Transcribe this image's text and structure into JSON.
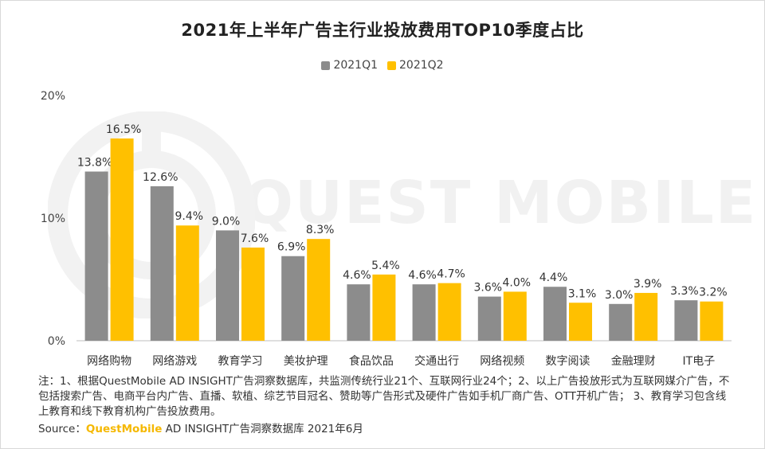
{
  "chart_data": {
    "type": "bar",
    "title": "2021年上半年广告主行业投放费用TOP10季度占比",
    "categories": [
      "网络购物",
      "网络游戏",
      "教育学习",
      "美妆护理",
      "食品饮品",
      "交通出行",
      "网络视频",
      "数字阅读",
      "金融理财",
      "IT电子"
    ],
    "series": [
      {
        "name": "2021Q1",
        "values": [
          13.8,
          12.6,
          9.0,
          6.9,
          4.6,
          4.6,
          3.6,
          4.4,
          3.0,
          3.3
        ],
        "labels": [
          "13.8%",
          "12.6%",
          "9.0%",
          "6.9%",
          "4.6%",
          "4.6%",
          "3.6%",
          "4.4%",
          "3.0%",
          "3.3%"
        ],
        "color": "#8c8c8c"
      },
      {
        "name": "2021Q2",
        "values": [
          16.5,
          9.4,
          7.6,
          8.3,
          5.4,
          4.7,
          4.0,
          3.1,
          3.9,
          3.2
        ],
        "labels": [
          "16.5%",
          "9.4%",
          "7.6%",
          "8.3%",
          "5.4%",
          "4.7%",
          "4.0%",
          "3.1%",
          "3.9%",
          "3.2%"
        ],
        "color": "#ffc000"
      }
    ],
    "yticks": [
      "0%",
      "10%",
      "20%"
    ],
    "ytick_values": [
      0,
      10,
      20
    ],
    "ylim": [
      0,
      20
    ],
    "grid": false,
    "legend": "top-center"
  },
  "watermark": {
    "text": "QUEST MOBILE"
  },
  "footnote": {
    "note": "注：1、根据QuestMobile AD INSIGHT广告洞察数据库，共监测传统行业21个、互联网行业24个；2、以上广告投放形式为互联网媒介广告，不包括搜索广告、电商平台内广告、直播、软植、综艺节目冠名、赞助等广告形式及硬件广告如手机厂商广告、OTT开机广告； 3、教育学习包含线上教育和线下教育机构广告投放费用。",
    "source_prefix": "Source：",
    "source_brand": "QuestMobile",
    "source_rest": " AD INSIGHT广告洞察数据库 2021年6月"
  }
}
